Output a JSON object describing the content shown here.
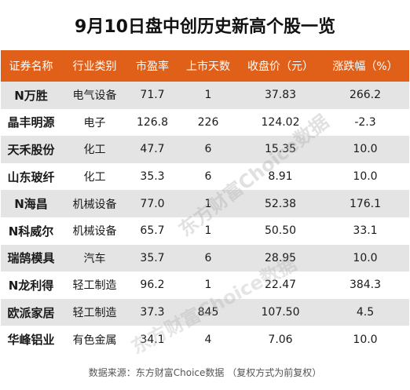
{
  "title": "9月10日盘中创历史新高个股一览",
  "headers": [
    "证券名称",
    "行业类别",
    "市盈率",
    "上市天数",
    "收盘价（元）",
    "涨跌幅（%）"
  ],
  "rows": [
    [
      "N万胜",
      "电气设备",
      "71.7",
      "1",
      "37.83",
      "266.2"
    ],
    [
      "晶丰明源",
      "电子",
      "126.8",
      "226",
      "124.02",
      "-2.3"
    ],
    [
      "天禾股份",
      "化工",
      "47.7",
      "6",
      "15.35",
      "10.0"
    ],
    [
      "山东玻纤",
      "化工",
      "35.3",
      "6",
      "8.91",
      "10.0"
    ],
    [
      "N海昌",
      "机械设备",
      "77.0",
      "1",
      "52.38",
      "176.1"
    ],
    [
      "N科威尔",
      "机械设备",
      "65.7",
      "1",
      "50.50",
      "33.1"
    ],
    [
      "瑞鹄模具",
      "汽车",
      "35.7",
      "6",
      "28.95",
      "10.0"
    ],
    [
      "N龙利得",
      "轻工制造",
      "96.2",
      "1",
      "22.47",
      "384.3"
    ],
    [
      "欧派家居",
      "轻工制造",
      "37.3",
      "845",
      "107.50",
      "4.5"
    ],
    [
      "华峰铝业",
      "有色金属",
      "34.1",
      "4",
      "7.06",
      "10.0"
    ]
  ],
  "footer": "数据来源：东方财富Choice数据 （复权方式为前复权）",
  "watermark": "东方财富Choice数据",
  "colors": {
    "header_bg": "#e0601a",
    "stripe": "#e4e4e4"
  }
}
